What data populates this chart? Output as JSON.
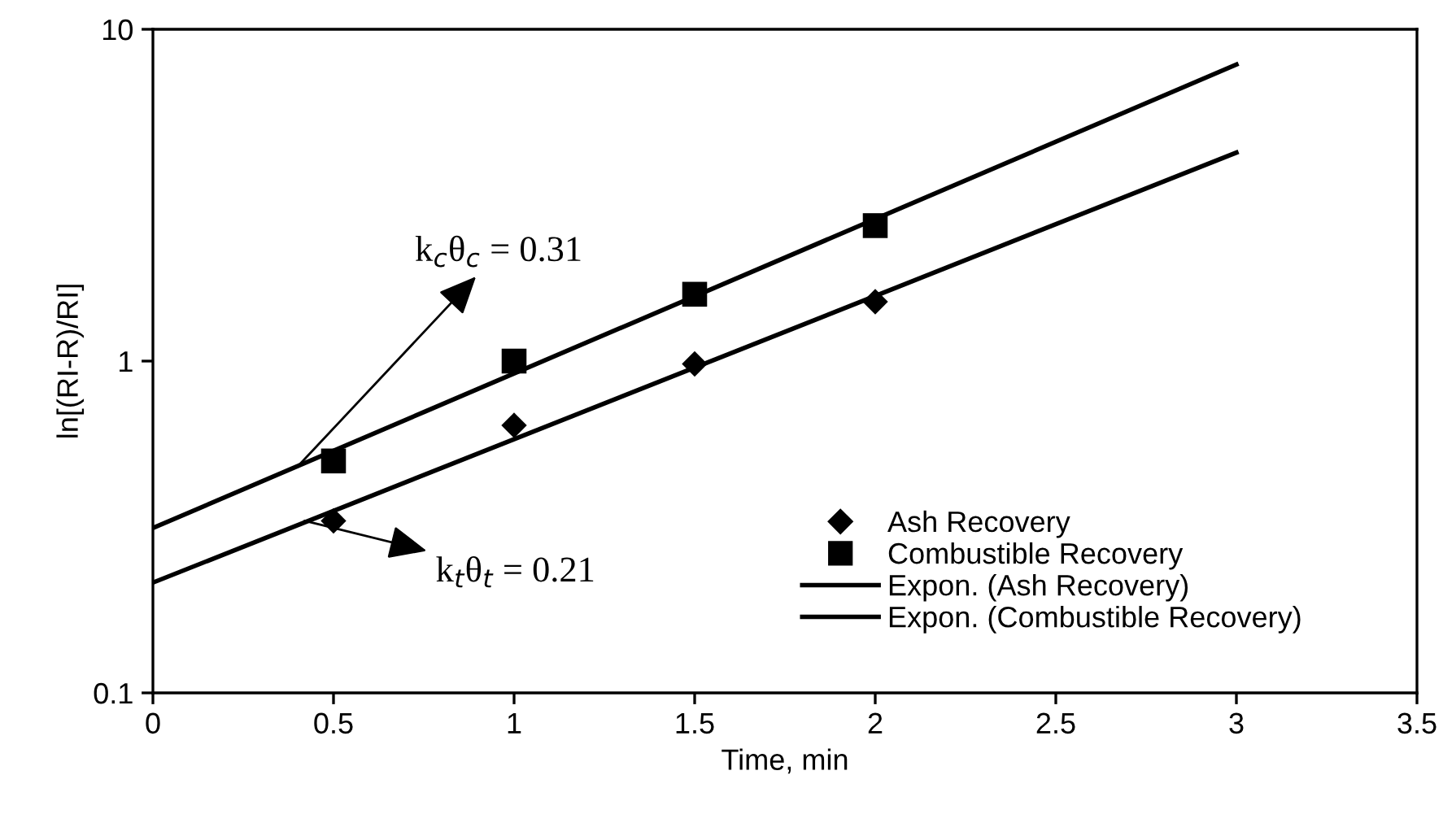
{
  "chart_data": {
    "type": "scatter",
    "xlabel": "Time, min",
    "ylabel": "ln[(RI-R)/RI]",
    "log": "y",
    "xlim": [
      0,
      3.5
    ],
    "xticks": [
      0,
      0.5,
      1,
      1.5,
      2,
      2.5,
      3,
      3.5
    ],
    "ylim": [
      0.1,
      10
    ],
    "yticks": [
      0.1,
      1,
      10
    ],
    "grid": false,
    "legend": "bottom right",
    "series": [
      {
        "name": "Ash Recovery",
        "marker": "diamond",
        "color": "#000000",
        "x": [
          0.5,
          1,
          1.5,
          2
        ],
        "values": [
          0.33,
          0.64,
          0.98,
          1.51
        ]
      },
      {
        "name": "Combustible Recovery",
        "marker": "square",
        "color": "#000000",
        "x": [
          0.5,
          1,
          1.5,
          2
        ],
        "values": [
          0.5,
          1.0,
          1.59,
          2.56
        ]
      },
      {
        "name": "Expon. (Ash Recovery)",
        "type": "line",
        "marker": "none",
        "line_style": "solid",
        "color": "#000000",
        "x": [
          0,
          3
        ],
        "values": [
          0.215,
          4.25
        ]
      },
      {
        "name": "Expon. (Combustible Recovery)",
        "type": "line",
        "marker": "none",
        "line_style": "solid",
        "color": "#000000",
        "x": [
          0,
          3
        ],
        "values": [
          0.314,
          7.83
        ]
      }
    ],
    "annotations": [
      {
        "text": "k$_{c}$θ$_{c}$ = 0.31",
        "x": 0.4,
        "y": 0.48
      },
      {
        "text": "k$_{t}$θ$_{t}$ = 0.21",
        "x": 0.42,
        "y": 0.33
      }
    ]
  }
}
